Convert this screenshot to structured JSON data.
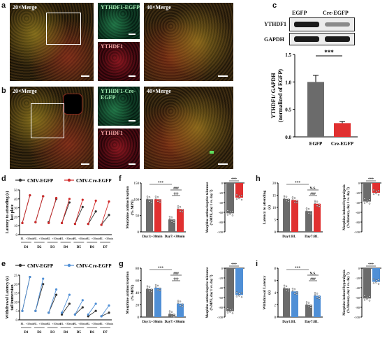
{
  "panels": {
    "a": {
      "label": "a",
      "merge20": "20×Merge",
      "egfp": "YTHDF1-EGFP",
      "ythdf1": "YTHDF1",
      "merge40": "40×Merge"
    },
    "b": {
      "label": "b",
      "merge20": "20×Merge",
      "egfp": "YTHDF1-Cre-EGFP",
      "ythdf1": "YTHDF1",
      "merge40": "40×Merge"
    },
    "c": {
      "label": "c",
      "lane1": "EGFP",
      "lane2": "Cre-EGFP",
      "blot1": "YTHDF1",
      "blot2": "GAPDH"
    },
    "d": {
      "label": "d"
    },
    "e": {
      "label": "e"
    },
    "f": {
      "label": "f"
    },
    "g": {
      "label": "g"
    },
    "h": {
      "label": "h"
    },
    "i": {
      "label": "i"
    }
  },
  "chart_data": [
    {
      "id": "c",
      "type": "bar",
      "categories": [
        "EGFP",
        "Cre-EGFP"
      ],
      "values": [
        1.0,
        0.25
      ],
      "errors": [
        0.12,
        0.03
      ],
      "ylabel": "YTHDF1/ GAPDH (normalized of EGFP)",
      "ylim": [
        0,
        1.5
      ],
      "yticks": [
        "0.0",
        "0.5",
        "1.0",
        "1.5"
      ],
      "significance": "***",
      "colors": [
        "#6b6b6b",
        "#e03030"
      ]
    },
    {
      "id": "d",
      "type": "line",
      "legend": [
        "CMV-EGFP",
        "CMV-Cre-EGFP"
      ],
      "colors": [
        "#333333",
        "#d02828"
      ],
      "ylabel": "Latency to attending (s) hot plate",
      "ylim": [
        0,
        50
      ],
      "yticks": [
        "0",
        "10",
        "20",
        "30",
        "40",
        "50"
      ],
      "days": [
        "D1",
        "D2",
        "D3",
        "D4",
        "D5",
        "D6",
        "D7"
      ],
      "ticklabels": [
        "BL",
        "+30min"
      ],
      "series": [
        {
          "name": "CMV-EGFP",
          "values": [
            [
              13,
              44
            ],
            [
              14,
              43
            ],
            [
              14,
              40
            ],
            [
              13,
              36
            ],
            [
              12,
              31
            ],
            [
              12,
              26
            ],
            [
              11,
              22
            ]
          ]
        },
        {
          "name": "CMV-Cre-EGFP",
          "values": [
            [
              13,
              44
            ],
            [
              14,
              43
            ],
            [
              13,
              41
            ],
            [
              13,
              40
            ],
            [
              12,
              39
            ],
            [
              12,
              38
            ],
            [
              11,
              37
            ]
          ]
        }
      ]
    },
    {
      "id": "e",
      "type": "line",
      "legend": [
        "CMV-EGFP",
        "CMV-Cre-EGFP"
      ],
      "colors": [
        "#333333",
        "#4f8fd6"
      ],
      "ylabel": "Withdrawal Latency (s) tail immersion",
      "ylim": [
        0,
        25
      ],
      "yticks": [
        "0",
        "5",
        "10",
        "15",
        "20",
        "25"
      ],
      "days": [
        "D1",
        "D2",
        "D3",
        "D4",
        "D5",
        "D6",
        "D7"
      ],
      "ticklabels": [
        "BL",
        "+30min"
      ],
      "series": [
        {
          "name": "CMV-EGFP",
          "values": [
            [
              5,
              24
            ],
            [
              5,
              20
            ],
            [
              4,
              14
            ],
            [
              3,
              9
            ],
            [
              3,
              7
            ],
            [
              2,
              5
            ],
            [
              2,
              4
            ]
          ]
        },
        {
          "name": "CMV-Cre-EGFP",
          "values": [
            [
              5,
              24
            ],
            [
              5,
              23
            ],
            [
              4,
              17
            ],
            [
              4,
              14
            ],
            [
              3,
              11
            ],
            [
              3,
              9
            ],
            [
              2,
              8
            ]
          ]
        }
      ]
    },
    {
      "id": "f",
      "type": "bar",
      "ylabel": "Morphine antinociception (% MPE)",
      "groups": [
        "Day1:+30min",
        "Day7:+30min"
      ],
      "ylim": [
        0,
        150
      ],
      "yticks": [
        "0",
        "50",
        "100",
        "150"
      ],
      "series": [
        {
          "color": "#6b6b6b",
          "values": [
            100,
            38
          ]
        },
        {
          "color": "#e03030",
          "values": [
            100,
            70
          ]
        }
      ],
      "significance": [
        "***",
        "###",
        "†††"
      ],
      "sub": {
        "ylabel": "Morphine antinociceptive tolerance (%MPE, day 1 vs. day 7)",
        "ylim": [
          -100,
          0
        ],
        "yticks": [
          "0",
          "-20",
          "-40",
          "-60",
          "-80",
          "-100"
        ],
        "values": [
          -62,
          -30
        ],
        "significance": "***"
      }
    },
    {
      "id": "g",
      "type": "bar",
      "ylabel": "Morphine antinociception (% MPE)",
      "groups": [
        "Day1:+30min",
        "Day7:+30min"
      ],
      "ylim": [
        0,
        80
      ],
      "yticks": [
        "0",
        "20",
        "40",
        "60",
        "80"
      ],
      "series": [
        {
          "color": "#6b6b6b",
          "values": [
            46,
            5
          ]
        },
        {
          "color": "#4f8fd6",
          "values": [
            48,
            22
          ]
        }
      ],
      "significance": [
        "***",
        "###",
        "†††"
      ],
      "sub": {
        "ylabel": "Morphine antinociceptive tolerance (%MPE, day 1 vs. day 7)",
        "ylim": [
          -100,
          0
        ],
        "yticks": [
          "0",
          "-20",
          "-40",
          "-60",
          "-80",
          "-100"
        ],
        "values": [
          -88,
          -55
        ],
        "significance": "***"
      }
    },
    {
      "id": "h",
      "type": "bar",
      "ylabel": "Latency to attending (s)",
      "groups": [
        "Day1:BL",
        "Day7:BL"
      ],
      "ylim": [
        0,
        20
      ],
      "yticks": [
        "0",
        "5",
        "10",
        "15",
        "20"
      ],
      "series": [
        {
          "color": "#6b6b6b",
          "values": [
            13.5,
            8.5
          ]
        },
        {
          "color": "#e03030",
          "values": [
            13,
            11.5
          ]
        }
      ],
      "significance": [
        "***",
        "N.S.",
        "###"
      ],
      "sub": {
        "ylabel": "Morphine-induced hyperalgesia (%Δlatency, day 1 vs. day 7)",
        "ylim": [
          -100,
          0
        ],
        "yticks": [
          "0",
          "-20",
          "-40",
          "-60",
          "-80",
          "-100"
        ],
        "values": [
          -38,
          -20
        ],
        "significance": "***"
      }
    },
    {
      "id": "i",
      "type": "bar",
      "ylabel": "Withdrawal Latency (s)",
      "groups": [
        "Day1:BL",
        "Day7:BL"
      ],
      "ylim": [
        0,
        8
      ],
      "yticks": [
        "0",
        "2",
        "4",
        "6",
        "8"
      ],
      "series": [
        {
          "color": "#6b6b6b",
          "values": [
            4.7,
            2
          ]
        },
        {
          "color": "#4f8fd6",
          "values": [
            4.2,
            3.5
          ]
        }
      ],
      "significance": [
        "***",
        "N.S.",
        "###"
      ],
      "sub": {
        "ylabel": "Morphine-induced hyperalgesia (%Δlatency, day 1 vs. day 7)",
        "ylim": [
          -100,
          0
        ],
        "yticks": [
          "0",
          "-20",
          "-40",
          "-60",
          "-80",
          "-100"
        ],
        "values": [
          -62,
          -28
        ],
        "significance": "***"
      }
    }
  ]
}
